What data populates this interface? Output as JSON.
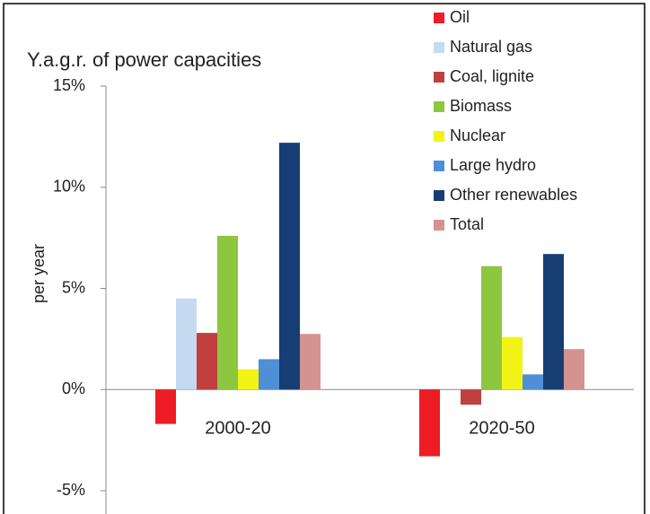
{
  "chart_data": {
    "type": "bar",
    "title": "Y.a.g.r. of power capacities",
    "y_label": "per year",
    "categories": [
      "2000-20",
      "2020-50"
    ],
    "series": [
      {
        "name": "Oil",
        "color": "#ee1c24",
        "values": [
          -1.7,
          -3.3
        ]
      },
      {
        "name": "Natural gas",
        "color": "#c5d9f1",
        "values": [
          4.5,
          0
        ]
      },
      {
        "name": "Coal, lignite",
        "color": "#c0403f",
        "values": [
          2.8,
          -0.75
        ]
      },
      {
        "name": "Biomass",
        "color": "#8dc63f",
        "values": [
          7.6,
          6.1
        ]
      },
      {
        "name": "Nuclear",
        "color": "#f3f315",
        "values": [
          1.0,
          2.6
        ]
      },
      {
        "name": "Large hydro",
        "color": "#4f8fd6",
        "values": [
          1.5,
          0.75
        ]
      },
      {
        "name": "Other renewables",
        "color": "#163e74",
        "values": [
          12.2,
          6.7
        ]
      },
      {
        "name": "Total",
        "color": "#d49391",
        "values": [
          2.75,
          2.0
        ]
      }
    ],
    "ylim": [
      -5,
      15
    ],
    "yticks": [
      {
        "value": -5,
        "label": "-5%"
      },
      {
        "value": 0,
        "label": "0%"
      },
      {
        "value": 5,
        "label": "5%"
      },
      {
        "value": 10,
        "label": "10%"
      },
      {
        "value": 15,
        "label": "15%"
      }
    ],
    "legend": "top-right"
  }
}
